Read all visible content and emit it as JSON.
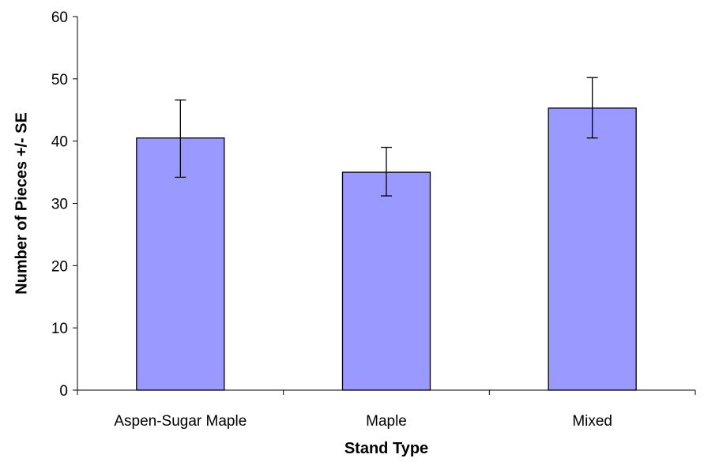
{
  "chart_data": {
    "type": "bar",
    "title": "",
    "xlabel": "Stand Type",
    "ylabel": "Number of Pieces +/- SE",
    "categories": [
      "Aspen-Sugar Maple",
      "Maple",
      "Mixed"
    ],
    "values": [
      40.5,
      35.0,
      45.3
    ],
    "error_low": [
      34.2,
      31.2,
      40.5
    ],
    "error_high": [
      46.6,
      39.0,
      50.2
    ],
    "ylim": [
      0,
      60
    ],
    "yticks": [
      0,
      10,
      20,
      30,
      40,
      50,
      60
    ],
    "ytick_labels": [
      "0",
      "10",
      "20",
      "30",
      "40",
      "50",
      "60"
    ],
    "grid": false,
    "legend": "none",
    "bar_color": "#9999ff",
    "bar_edge_color": "#000000"
  }
}
